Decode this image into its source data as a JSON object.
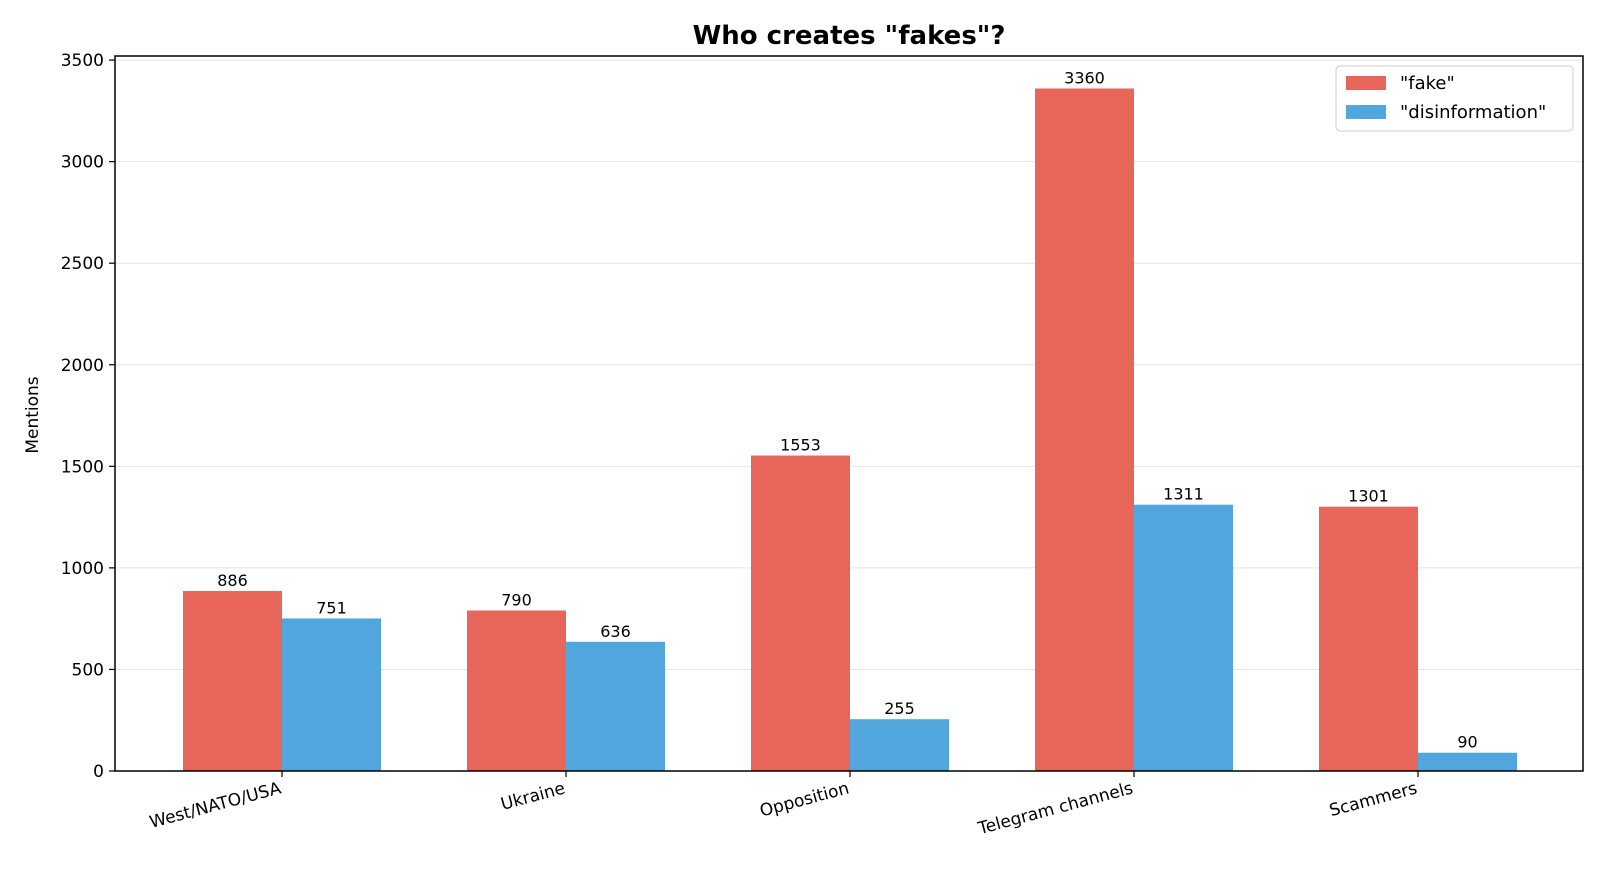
{
  "chart_data": {
    "type": "bar",
    "title": "Who creates \"fakes\"?",
    "xlabel": "",
    "ylabel": "Mentions",
    "categories": [
      "West/NATO/USA",
      "Ukraine",
      "Opposition",
      "Telegram channels",
      "Scammers"
    ],
    "series": [
      {
        "name": "\"fake\"",
        "color": "#e8655a",
        "values": [
          886,
          790,
          1553,
          3360,
          1301
        ]
      },
      {
        "name": "\"disinformation\"",
        "color": "#52a6de",
        "values": [
          751,
          636,
          255,
          1311,
          90
        ]
      }
    ],
    "ylim": [
      0,
      3520
    ],
    "yticks": [
      0,
      500,
      1000,
      1500,
      2000,
      2500,
      3000,
      3500
    ],
    "grid": "horizontal",
    "legend_position": "top-right"
  }
}
